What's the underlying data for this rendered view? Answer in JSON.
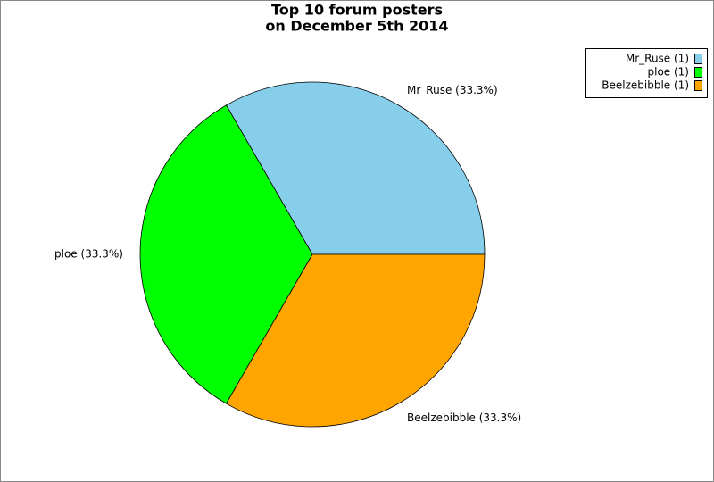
{
  "chart_data": {
    "type": "pie",
    "title": [
      "Top 10 forum posters",
      "on December 5th 2014"
    ],
    "values": [
      1,
      1,
      1
    ],
    "slice_labels": [
      "Mr_Ruse (33.3%)",
      "ploe (33.3%)",
      "Beelzebibble (33.3%)"
    ],
    "legend_labels": [
      "Mr_Ruse (1)",
      "ploe (1)",
      "Beelzebibble (1)"
    ],
    "colors": [
      "#87ceeb",
      "#00ff00",
      "#ffa500"
    ],
    "legend": "top-right"
  }
}
